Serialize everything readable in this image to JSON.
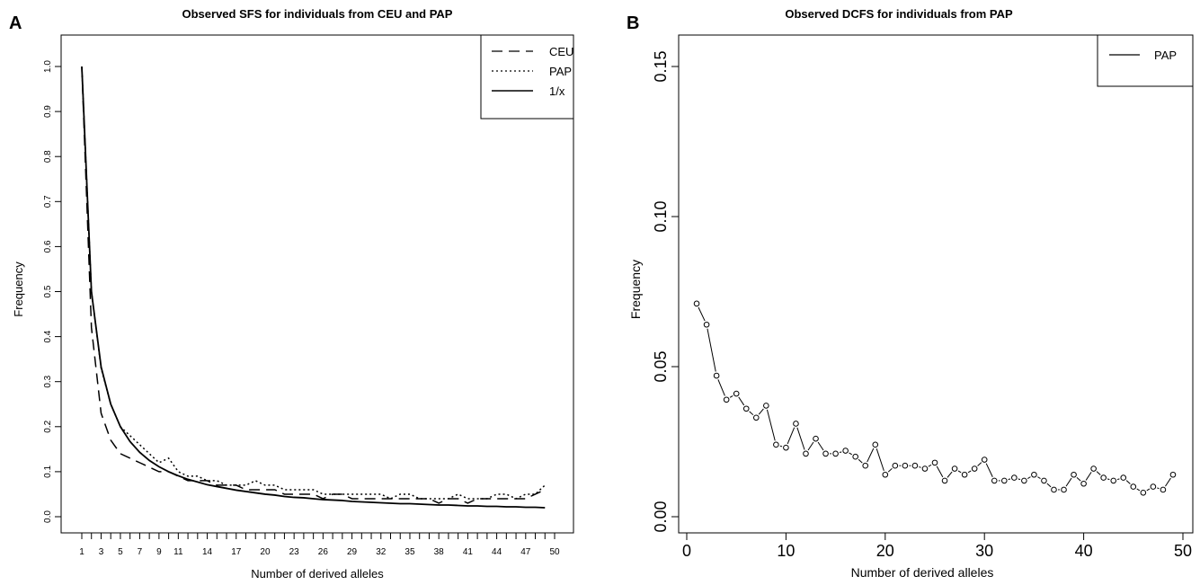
{
  "figure": {
    "panelA": {
      "letter": "A",
      "title": "Observed SFS for individuals from CEU and PAP",
      "xlabel": "Number of derived alleles",
      "ylabel": "Frequency",
      "legend": [
        {
          "label": "CEU",
          "style": "dashed"
        },
        {
          "label": "PAP",
          "style": "dotted"
        },
        {
          "label": "1/x",
          "style": "solid"
        }
      ]
    },
    "panelB": {
      "letter": "B",
      "title": "Observed DCFS for individuals from PAP",
      "xlabel": "Number of derived alleles",
      "ylabel": "Frequency",
      "legend": [
        {
          "label": "PAP",
          "style": "solid"
        }
      ]
    }
  },
  "chart_data": [
    {
      "type": "line",
      "title": "Observed SFS for individuals from CEU and PAP",
      "xlabel": "Number of derived alleles",
      "ylabel": "Frequency",
      "xlim": [
        0,
        50
      ],
      "ylim": [
        0,
        1.0
      ],
      "x_ticks": [
        1,
        2,
        3,
        4,
        5,
        6,
        7,
        8,
        9,
        10,
        11,
        12,
        13,
        14,
        15,
        16,
        17,
        18,
        19,
        20,
        21,
        22,
        23,
        24,
        25,
        26,
        27,
        28,
        29,
        30,
        31,
        32,
        33,
        34,
        35,
        36,
        37,
        38,
        39,
        40,
        41,
        42,
        43,
        44,
        45,
        46,
        47,
        48,
        49,
        50
      ],
      "x_tick_labels": [
        "1",
        "3",
        "5",
        "7",
        "9",
        "11",
        "14",
        "17",
        "20",
        "23",
        "26",
        "29",
        "32",
        "35",
        "38",
        "41",
        "44",
        "47",
        "50"
      ],
      "y_ticks": [
        0.0,
        0.1,
        0.2,
        0.3,
        0.4,
        0.5,
        0.6,
        0.7,
        0.8,
        0.9,
        1.0
      ],
      "y_tick_labels": [
        "0.0",
        "0.1",
        "0.2",
        "0.3",
        "0.4",
        "0.5",
        "0.6",
        "0.7",
        "0.8",
        "0.9",
        "1.0"
      ],
      "grid": false,
      "legend_position": "top-right",
      "x": [
        1,
        2,
        3,
        4,
        5,
        6,
        7,
        8,
        9,
        10,
        11,
        12,
        13,
        14,
        15,
        16,
        17,
        18,
        19,
        20,
        21,
        22,
        23,
        24,
        25,
        26,
        27,
        28,
        29,
        30,
        31,
        32,
        33,
        34,
        35,
        36,
        37,
        38,
        39,
        40,
        41,
        42,
        43,
        44,
        45,
        46,
        47,
        48,
        49
      ],
      "series": [
        {
          "name": "CEU",
          "style": "dashed",
          "values": [
            1.0,
            0.42,
            0.23,
            0.17,
            0.14,
            0.13,
            0.12,
            0.11,
            0.1,
            0.1,
            0.09,
            0.08,
            0.08,
            0.08,
            0.07,
            0.07,
            0.07,
            0.06,
            0.06,
            0.06,
            0.06,
            0.05,
            0.05,
            0.05,
            0.05,
            0.04,
            0.05,
            0.05,
            0.04,
            0.04,
            0.04,
            0.04,
            0.04,
            0.04,
            0.04,
            0.04,
            0.04,
            0.03,
            0.04,
            0.04,
            0.03,
            0.04,
            0.04,
            0.04,
            0.04,
            0.04,
            0.04,
            0.05,
            0.06
          ]
        },
        {
          "name": "PAP",
          "style": "dotted",
          "values": [
            1.0,
            0.5,
            0.33,
            0.25,
            0.2,
            0.18,
            0.16,
            0.14,
            0.12,
            0.13,
            0.1,
            0.09,
            0.09,
            0.08,
            0.08,
            0.07,
            0.07,
            0.07,
            0.08,
            0.07,
            0.07,
            0.06,
            0.06,
            0.06,
            0.06,
            0.05,
            0.05,
            0.05,
            0.05,
            0.05,
            0.05,
            0.05,
            0.04,
            0.05,
            0.05,
            0.04,
            0.04,
            0.04,
            0.04,
            0.05,
            0.04,
            0.04,
            0.04,
            0.05,
            0.05,
            0.04,
            0.05,
            0.05,
            0.07
          ]
        },
        {
          "name": "1/x",
          "style": "solid",
          "formula": "1/x",
          "values": [
            1.0,
            0.5,
            0.333,
            0.25,
            0.2,
            0.167,
            0.143,
            0.125,
            0.111,
            0.1,
            0.091,
            0.083,
            0.077,
            0.071,
            0.067,
            0.063,
            0.059,
            0.056,
            0.053,
            0.05,
            0.048,
            0.045,
            0.043,
            0.042,
            0.04,
            0.038,
            0.037,
            0.036,
            0.034,
            0.033,
            0.032,
            0.031,
            0.03,
            0.029,
            0.029,
            0.028,
            0.027,
            0.026,
            0.026,
            0.025,
            0.024,
            0.024,
            0.023,
            0.023,
            0.022,
            0.022,
            0.021,
            0.021,
            0.02
          ]
        }
      ]
    },
    {
      "type": "line",
      "title": "Observed DCFS for individuals from PAP",
      "xlabel": "Number of derived alleles",
      "ylabel": "Frequency",
      "xlim": [
        0,
        50
      ],
      "ylim": [
        0,
        0.15
      ],
      "x_ticks": [
        0,
        10,
        20,
        30,
        40,
        50
      ],
      "x_tick_labels": [
        "0",
        "10",
        "20",
        "30",
        "40",
        "50"
      ],
      "y_ticks": [
        0.0,
        0.05,
        0.1,
        0.15
      ],
      "y_tick_labels": [
        "0.00",
        "0.05",
        "0.10",
        "0.15"
      ],
      "grid": false,
      "legend_position": "top-right",
      "markers": "open-circle",
      "x": [
        1,
        2,
        3,
        4,
        5,
        6,
        7,
        8,
        9,
        10,
        11,
        12,
        13,
        14,
        15,
        16,
        17,
        18,
        19,
        20,
        21,
        22,
        23,
        24,
        25,
        26,
        27,
        28,
        29,
        30,
        31,
        32,
        33,
        34,
        35,
        36,
        37,
        38,
        39,
        40,
        41,
        42,
        43,
        44,
        45,
        46,
        47,
        48,
        49
      ],
      "series": [
        {
          "name": "PAP",
          "style": "solid",
          "values": [
            0.071,
            0.064,
            0.047,
            0.039,
            0.041,
            0.036,
            0.033,
            0.037,
            0.024,
            0.023,
            0.031,
            0.021,
            0.026,
            0.021,
            0.021,
            0.022,
            0.02,
            0.017,
            0.024,
            0.014,
            0.017,
            0.017,
            0.017,
            0.016,
            0.018,
            0.012,
            0.016,
            0.014,
            0.016,
            0.019,
            0.012,
            0.012,
            0.013,
            0.012,
            0.014,
            0.012,
            0.009,
            0.009,
            0.014,
            0.011,
            0.016,
            0.013,
            0.012,
            0.013,
            0.01,
            0.008,
            0.01,
            0.009,
            0.014
          ]
        }
      ]
    }
  ]
}
